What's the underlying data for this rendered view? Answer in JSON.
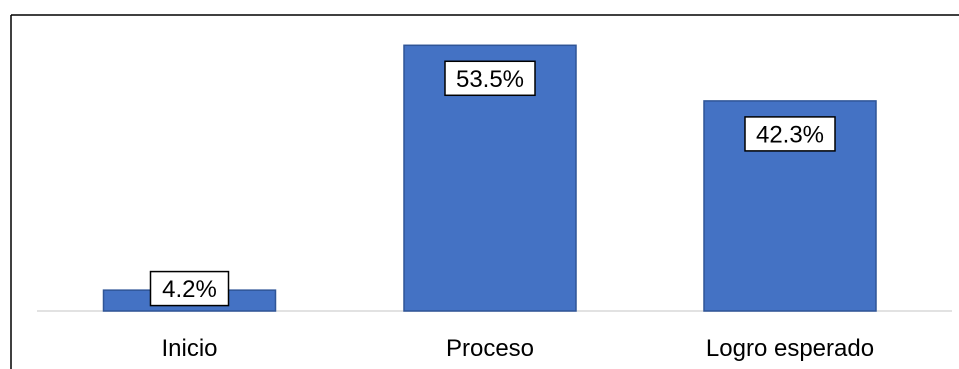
{
  "chart_data": {
    "type": "bar",
    "categories": [
      "Inicio",
      "Proceso",
      "Logro esperado"
    ],
    "values": [
      4.2,
      53.5,
      42.3
    ],
    "data_labels": [
      "4.2%",
      "53.5%",
      "42.3%"
    ],
    "title": "",
    "xlabel": "",
    "ylabel": "",
    "ylim": [
      0,
      60
    ],
    "grid": false,
    "legend": "none",
    "colors": {
      "bar_fill": "#4472c4",
      "bar_stroke": "#2f5597",
      "label_box_fill": "#ffffff",
      "label_box_stroke": "#000000",
      "axis_line": "#d9d9d9",
      "frame": "#000000"
    }
  }
}
